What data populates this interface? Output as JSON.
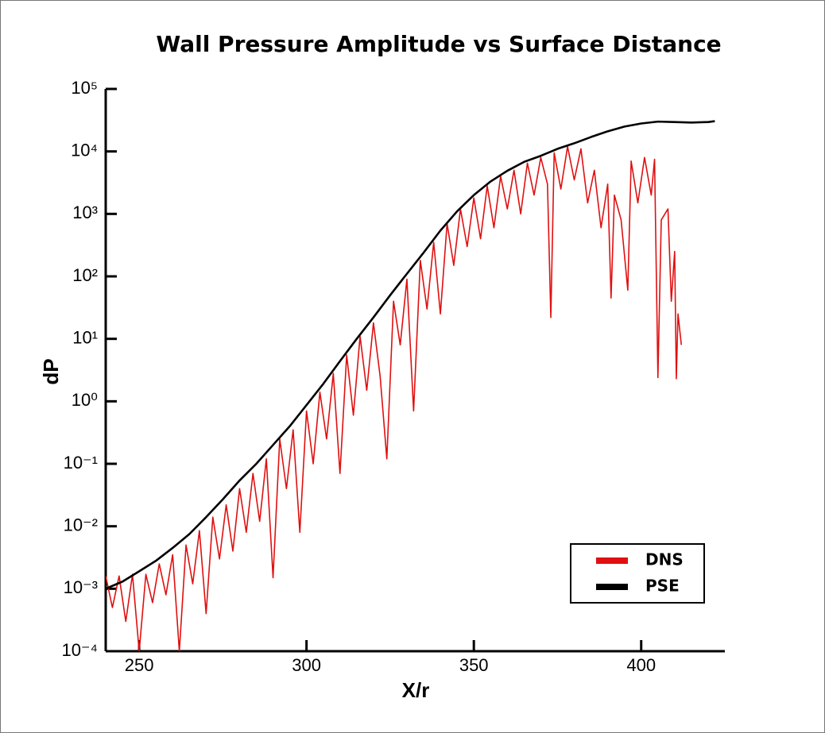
{
  "chart_data": {
    "type": "line",
    "title": "Wall Pressure Amplitude vs Surface Distance",
    "x_label": "X/r",
    "y_label": "dP",
    "yscale": "log",
    "grid": false,
    "legend": "lower right",
    "xlim": [
      240,
      425
    ],
    "xticks": [
      250,
      300,
      350,
      400
    ],
    "ylim": [
      0.0001,
      100000
    ],
    "yticks": [
      {
        "value": 0.0001,
        "label": "10⁻⁴"
      },
      {
        "value": 0.001,
        "label": "10⁻³"
      },
      {
        "value": 0.01,
        "label": "10⁻²"
      },
      {
        "value": 0.1,
        "label": "10⁻¹"
      },
      {
        "value": 1,
        "label": "10⁰"
      },
      {
        "value": 10,
        "label": "10¹"
      },
      {
        "value": 100,
        "label": "10²"
      },
      {
        "value": 1000,
        "label": "10³"
      },
      {
        "value": 10000,
        "label": "10⁴"
      },
      {
        "value": 100000,
        "label": "10⁵"
      }
    ],
    "series": [
      {
        "name": "DNS",
        "color": "#e01010",
        "x": [
          240,
          242,
          244,
          246,
          248,
          250,
          252,
          254,
          256,
          258,
          260,
          262,
          264,
          266,
          268,
          270,
          272,
          274,
          276,
          278,
          280,
          282,
          284,
          286,
          288,
          290,
          292,
          294,
          296,
          298,
          300,
          302,
          304,
          306,
          308,
          310,
          312,
          314,
          316,
          318,
          320,
          322,
          324,
          326,
          328,
          330,
          332,
          334,
          336,
          338,
          340,
          342,
          344,
          346,
          348,
          350,
          352,
          354,
          356,
          358,
          360,
          362,
          364,
          366,
          368,
          370,
          372,
          373,
          374,
          376,
          378,
          380,
          382,
          384,
          386,
          388,
          390,
          391,
          392,
          394,
          396,
          397,
          399,
          401,
          403,
          404,
          405,
          406,
          408,
          409,
          410,
          410.5,
          411,
          412
        ],
        "values": [
          0.0016,
          0.0005,
          0.0016,
          0.0003,
          0.0017,
          0.0001,
          0.0017,
          0.0006,
          0.0025,
          0.0008,
          0.0035,
          0.0001,
          0.005,
          0.0012,
          0.0085,
          0.0004,
          0.014,
          0.003,
          0.022,
          0.004,
          0.04,
          0.008,
          0.07,
          0.012,
          0.12,
          0.0015,
          0.25,
          0.04,
          0.35,
          0.008,
          0.7,
          0.1,
          1.4,
          0.25,
          2.8,
          0.07,
          5.5,
          0.6,
          11,
          1.5,
          18,
          2.5,
          0.12,
          40,
          8,
          90,
          0.7,
          180,
          30,
          350,
          25,
          700,
          150,
          1200,
          300,
          1800,
          400,
          2800,
          600,
          4000,
          1200,
          5000,
          1000,
          6500,
          2000,
          8000,
          3000,
          22,
          9500,
          2500,
          12000,
          3500,
          11000,
          1500,
          5000,
          600,
          3000,
          45,
          2000,
          800,
          60,
          7000,
          1500,
          8000,
          2000,
          7500,
          2.4,
          800,
          1200,
          40,
          250,
          2.3,
          25,
          8
        ]
      },
      {
        "name": "PSE",
        "color": "#000000",
        "x": [
          240,
          245,
          250,
          255,
          260,
          265,
          270,
          275,
          280,
          285,
          290,
          295,
          300,
          305,
          310,
          315,
          320,
          325,
          330,
          335,
          340,
          345,
          350,
          355,
          360,
          365,
          370,
          375,
          380,
          385,
          390,
          395,
          400,
          405,
          410,
          415,
          420,
          422
        ],
        "values": [
          0.001,
          0.0013,
          0.0019,
          0.0028,
          0.0045,
          0.0075,
          0.014,
          0.027,
          0.054,
          0.1,
          0.2,
          0.4,
          0.87,
          1.9,
          4.4,
          10,
          22,
          50,
          110,
          240,
          540,
          1100,
          2000,
          3300,
          4900,
          6800,
          8500,
          11000,
          13500,
          17000,
          21000,
          25000,
          28000,
          30000,
          29500,
          29000,
          29500,
          30500
        ]
      }
    ]
  }
}
